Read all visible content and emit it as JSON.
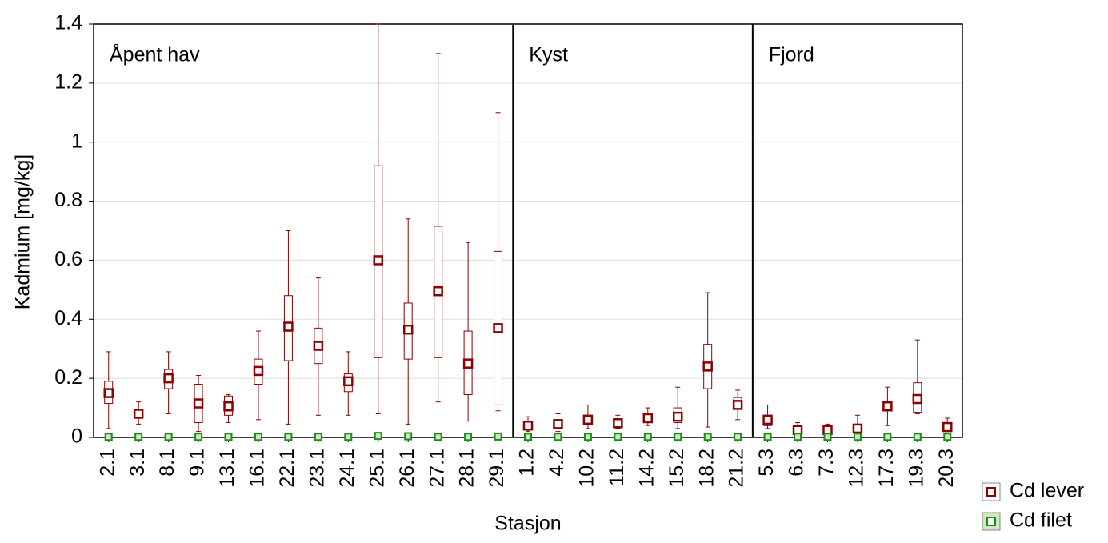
{
  "chart_data": {
    "type": "box",
    "xlabel": "Stasjon",
    "ylabel": "Kadmium [mg/kg]",
    "categories": [
      "2.1",
      "3.1",
      "8.1",
      "9.1",
      "13.1",
      "16.1",
      "22.1",
      "23.1",
      "24.1",
      "25.1",
      "26.1",
      "27.1",
      "28.1",
      "29.1",
      "1.2",
      "4.2",
      "10.2",
      "11.2",
      "14.2",
      "15.2",
      "18.2",
      "21.2",
      "5.3",
      "6.3",
      "7.3",
      "12.3",
      "17.3",
      "19.3",
      "20.3"
    ],
    "groups": [
      {
        "label": "Åpent hav",
        "size": 14
      },
      {
        "label": "Kyst",
        "size": 8
      },
      {
        "label": "Fjord",
        "size": 7
      }
    ],
    "series": [
      {
        "name": "Cd lever",
        "color": "#8b0000",
        "median": [
          0.15,
          0.08,
          0.2,
          0.115,
          0.105,
          0.225,
          0.375,
          0.31,
          0.19,
          0.6,
          0.365,
          0.495,
          0.25,
          0.37,
          0.04,
          0.045,
          0.06,
          0.048,
          0.065,
          0.07,
          0.24,
          0.11,
          0.06,
          0.025,
          0.025,
          0.03,
          0.105,
          0.13,
          0.035
        ],
        "q1": [
          0.115,
          0.07,
          0.165,
          0.05,
          0.075,
          0.18,
          0.26,
          0.25,
          0.155,
          0.27,
          0.265,
          0.27,
          0.145,
          0.11,
          0.03,
          0.03,
          0.045,
          0.04,
          0.055,
          0.05,
          0.165,
          0.095,
          0.04,
          0.015,
          0.015,
          0.02,
          0.09,
          0.085,
          0.025
        ],
        "q3": [
          0.19,
          0.095,
          0.23,
          0.18,
          0.14,
          0.265,
          0.48,
          0.37,
          0.215,
          0.92,
          0.455,
          0.715,
          0.36,
          0.63,
          0.05,
          0.06,
          0.07,
          0.055,
          0.07,
          0.1,
          0.315,
          0.135,
          0.07,
          0.035,
          0.035,
          0.04,
          0.12,
          0.185,
          0.045
        ],
        "min": [
          0.03,
          0.045,
          0.08,
          0.02,
          0.05,
          0.06,
          0.045,
          0.075,
          0.075,
          0.08,
          0.045,
          0.12,
          0.055,
          0.09,
          0.02,
          0.02,
          0.03,
          0.03,
          0.04,
          0.03,
          0.035,
          0.06,
          0.03,
          0.01,
          0.01,
          0.01,
          0.04,
          0.08,
          0.02
        ],
        "max": [
          0.29,
          0.12,
          0.29,
          0.21,
          0.145,
          0.36,
          0.7,
          0.54,
          0.29,
          1.4,
          0.74,
          1.3,
          0.66,
          1.1,
          0.07,
          0.08,
          0.11,
          0.075,
          0.1,
          0.17,
          0.49,
          0.16,
          0.11,
          0.05,
          0.045,
          0.075,
          0.17,
          0.33,
          0.065
        ]
      },
      {
        "name": "Cd filet",
        "color": "#1a8c1a",
        "values": [
          0.002,
          0.002,
          0.002,
          0.002,
          0.002,
          0.002,
          0.002,
          0.002,
          0.002,
          0.005,
          0.004,
          0.002,
          0.002,
          0.003,
          0.002,
          0.002,
          0.002,
          0.002,
          0.002,
          0.002,
          0.002,
          0.002,
          0.002,
          0.002,
          0.002,
          0.002,
          0.002,
          0.002,
          0.002
        ]
      }
    ],
    "ylim": [
      0,
      1.4
    ],
    "yticks": [
      0,
      0.2,
      0.4,
      0.6,
      0.8,
      1,
      1.2,
      1.4
    ],
    "grid": true,
    "legend": "bottom-right"
  }
}
